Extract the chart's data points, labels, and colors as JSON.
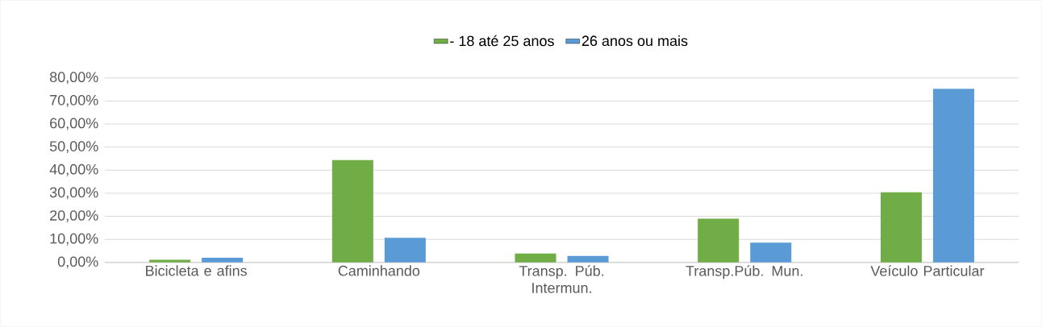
{
  "chart_data": {
    "type": "bar",
    "categories": [
      "Bicicleta e afins",
      "Caminhando",
      "Transp. Púb. Intermun.",
      "Transp.Púb. Mun.",
      "Veículo Particular"
    ],
    "series": [
      {
        "name": "- 18 até 25 anos",
        "color": "#70ad47",
        "values": [
          1.2,
          44.4,
          3.9,
          19.0,
          30.4
        ]
      },
      {
        "name": "26 anos ou mais",
        "color": "#5b9bd5",
        "values": [
          2.0,
          10.7,
          2.8,
          8.6,
          75.3
        ]
      }
    ],
    "ylim": [
      0,
      80
    ],
    "yticks": [
      {
        "value": 0,
        "label": "0,00%"
      },
      {
        "value": 10,
        "label": "10,00%"
      },
      {
        "value": 20,
        "label": "20,00%"
      },
      {
        "value": 30,
        "label": "30,00%"
      },
      {
        "value": 40,
        "label": "40,00%"
      },
      {
        "value": 50,
        "label": "50,00%"
      },
      {
        "value": 60,
        "label": "60,00%"
      },
      {
        "value": 70,
        "label": "70,00%"
      },
      {
        "value": 80,
        "label": "80,00%"
      }
    ],
    "grid": "y",
    "legend": "top"
  }
}
